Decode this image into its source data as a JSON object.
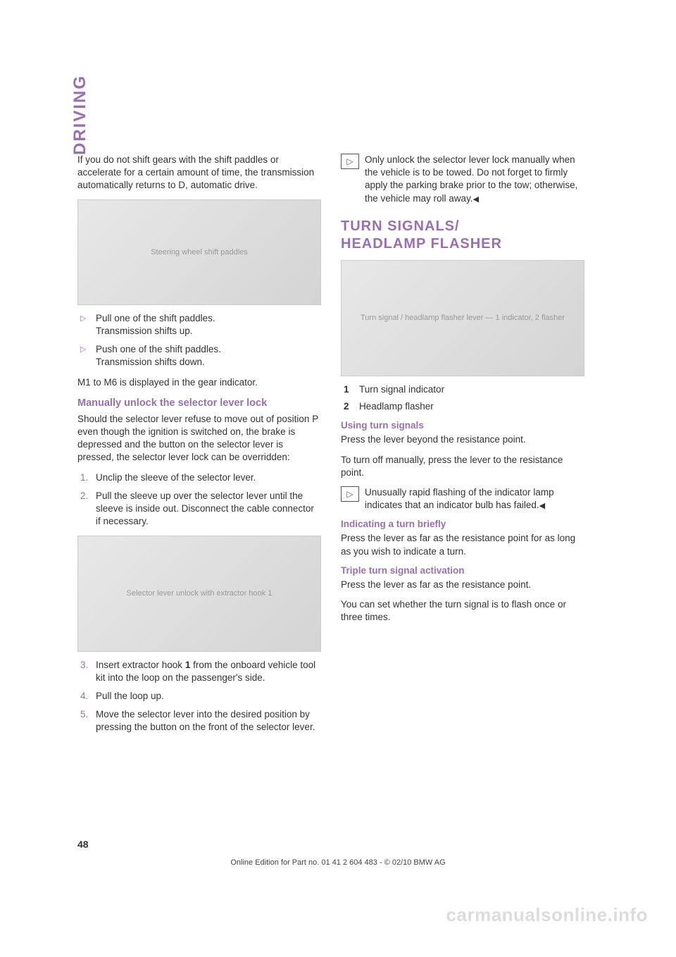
{
  "colors": {
    "accent": "#9a6fb2",
    "body_text": "#333333",
    "figure_bg_from": "#e8e8e8",
    "figure_bg_to": "#d4d4d4",
    "watermark": "#dcdcdc"
  },
  "sidebar_label": "DRIVING",
  "page_number": "48",
  "footer": "Online Edition for Part no. 01 41 2 604 483 - © 02/10  BMW AG",
  "watermark": "carmanualsonline.info",
  "left": {
    "intro": "If you do not shift gears with the shift paddles or accelerate for a certain amount of time, the transmission automatically returns to D, automatic drive.",
    "figure1_alt": "Steering wheel shift paddles",
    "bullets": [
      {
        "l1": "Pull one of the shift paddles.",
        "l2": "Transmission shifts up."
      },
      {
        "l1": "Push one of the shift paddles.",
        "l2": "Transmission shifts down."
      }
    ],
    "after_bullets": "M1 to M6 is displayed in the gear indicator.",
    "sub1": "Manually unlock the selector lever lock",
    "sub1_para": "Should the selector lever refuse to move out of position P even though the ignition is switched on, the brake is depressed and the button on the selector lever is pressed, the selector lever lock can be overridden:",
    "steps_a": [
      "Unclip the sleeve of the selector lever.",
      "Pull the sleeve up over the selector lever until the sleeve is inside out. Disconnect the cable connector if necessary."
    ],
    "figure2_alt": "Selector lever unlock with extractor hook 1",
    "steps_b": [
      {
        "n": "3.",
        "pre": "Insert extractor hook ",
        "bold": "1",
        "post": " from the onboard vehicle tool kit into the loop on the passenger's side."
      },
      {
        "n": "4.",
        "text": "Pull the loop up."
      },
      {
        "n": "5.",
        "text": "Move the selector lever into the desired position by pressing the button on the front of the selector lever."
      }
    ]
  },
  "right": {
    "note1": "Only unlock the selector lever lock manually when the vehicle is to be towed. Do not forget to firmly apply the parking brake prior to the tow; otherwise, the vehicle may roll away.",
    "heading_l1": "TURN SIGNALS/",
    "heading_l2": "HEADLAMP FLASHER",
    "figure_alt": "Turn signal / headlamp flasher lever — 1 indicator, 2 flasher",
    "legend": [
      {
        "n": "1",
        "t": "Turn signal indicator"
      },
      {
        "n": "2",
        "t": "Headlamp flasher"
      }
    ],
    "s1": {
      "h": "Using turn signals",
      "p1": "Press the lever beyond the resistance point.",
      "p2": "To turn off manually, press the lever to the resistance point.",
      "note": "Unusually rapid flashing of the indicator lamp indicates that an indicator bulb has failed."
    },
    "s2": {
      "h": "Indicating a turn briefly",
      "p": "Press the lever as far as the resistance point for as long as you wish to indicate a turn."
    },
    "s3": {
      "h": "Triple turn signal activation",
      "p1": "Press the lever as far as the resistance point.",
      "p2": "You can set whether the turn signal is to flash once or three times."
    }
  }
}
